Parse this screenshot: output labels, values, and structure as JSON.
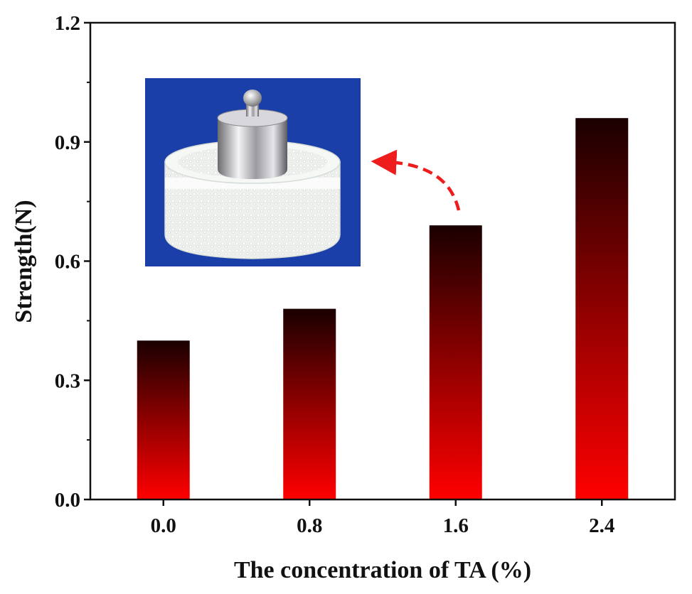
{
  "chart_data": {
    "type": "bar",
    "categories": [
      "0.0",
      "0.8",
      "1.6",
      "2.4"
    ],
    "values": [
      0.4,
      0.48,
      0.69,
      0.96
    ],
    "xlabel": "The concentration of TA (%)",
    "ylabel": "Strength(N)",
    "ylim": [
      0.0,
      1.2
    ],
    "yticks": [
      "0.0",
      "0.3",
      "0.6",
      "0.9",
      "1.2"
    ],
    "bar_gradient": {
      "top": "#1a0000",
      "bottom": "#ff0000"
    },
    "inset": {
      "description": "photo",
      "background": "#1a3fa8",
      "arrow_color": "#ee1c1c",
      "arrow_from_category": "1.6"
    }
  }
}
